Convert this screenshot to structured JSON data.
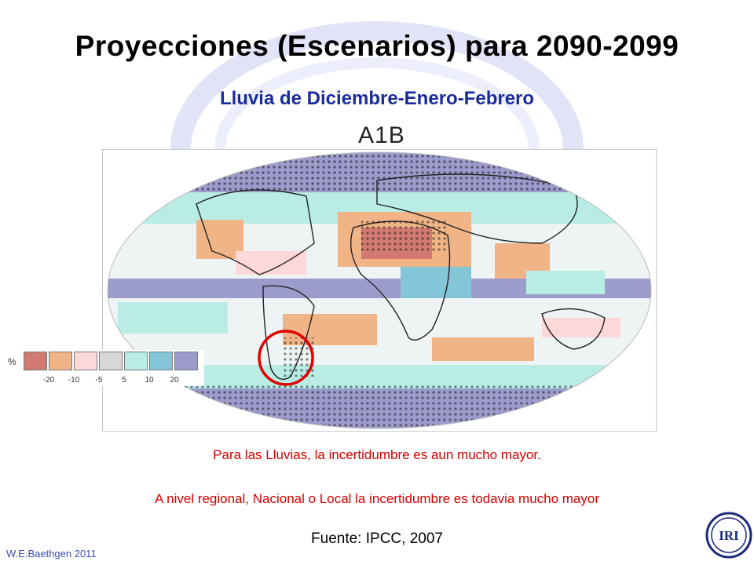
{
  "slide": {
    "title": "Proyecciones (Escenarios) para 2090-2099",
    "subtitle": "Lluvia de Diciembre-Enero-Febrero",
    "map_label": "A1B",
    "note_1": "Para las Lluvias, la incertidumbre es aun mucho mayor.",
    "note_2": "A nivel regional, Nacional o Local  la incertidumbre es todavia mucho mayor",
    "source": "Fuente: IPCC, 2007",
    "author": "W.E.Baethgen 2011",
    "logo_text": "IRI"
  },
  "legend": {
    "unit": "%",
    "swatches": [
      {
        "color": "#d07a72"
      },
      {
        "color": "#f0b486"
      },
      {
        "color": "#fcd8d8"
      },
      {
        "color": "#d8d8d8"
      },
      {
        "color": "#b8ece4"
      },
      {
        "color": "#82c6d8"
      },
      {
        "color": "#9c9ccc"
      }
    ],
    "ticks": [
      "-20",
      "-10",
      "-5",
      "5",
      "10",
      "20"
    ]
  },
  "colors": {
    "title": "#000000",
    "subtitle": "#1a2b9c",
    "notes": "#d60000",
    "highlight_circle": "#e00000",
    "watermark": "#c9cdf0"
  }
}
